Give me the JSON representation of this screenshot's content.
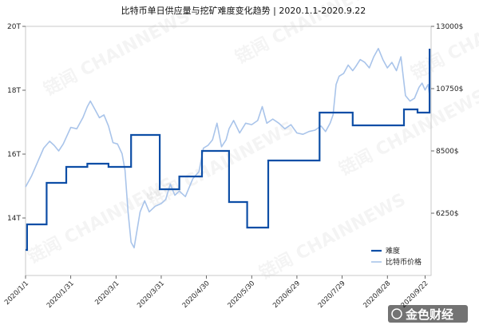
{
  "chart_data": {
    "type": "line",
    "title": "比特币单日供应量与挖矿难度变化趋势 | 2020.1.1-2020.9.22",
    "x_range": [
      "2020-01-01",
      "2020-09-22"
    ],
    "y_left": {
      "ticks": [
        "14T",
        "16T",
        "18T",
        "20T"
      ],
      "values": [
        14,
        16,
        18,
        20
      ],
      "range": [
        12.2,
        20
      ]
    },
    "y_right": {
      "ticks": [
        "6250$",
        "8500$",
        "10750$",
        "13000$"
      ],
      "values": [
        6250,
        8500,
        10750,
        13000
      ],
      "range": [
        4000,
        13000
      ]
    },
    "x_ticks": [
      "2020/1/1",
      "2020/1/31",
      "2020/3/1",
      "2020/3/31",
      "2020/4/30",
      "2020/5/30",
      "2020/6/29",
      "2020/7/29",
      "2020/8/28",
      "2020/9/22"
    ],
    "x_tick_days": [
      0,
      30,
      60,
      90,
      120,
      150,
      180,
      210,
      240,
      265
    ],
    "legend": {
      "position": "bottom-right",
      "items": [
        "难度",
        "比特币价格"
      ]
    },
    "watermark": "链闻 CHAINNEWS",
    "logo_text": "金色财经",
    "series": [
      {
        "name": "难度",
        "axis": "left",
        "color": "#0d4ea6",
        "step": true,
        "points": [
          [
            0,
            13.0
          ],
          [
            1,
            13.8
          ],
          [
            14,
            15.1
          ],
          [
            27,
            15.6
          ],
          [
            41,
            15.7
          ],
          [
            55,
            15.6
          ],
          [
            70,
            16.6
          ],
          [
            89,
            14.9
          ],
          [
            102,
            15.3
          ],
          [
            117,
            16.1
          ],
          [
            135,
            14.5
          ],
          [
            147,
            13.7
          ],
          [
            161,
            15.8
          ],
          [
            195,
            17.3
          ],
          [
            217,
            16.9
          ],
          [
            238,
            16.9
          ],
          [
            251,
            17.4
          ],
          [
            260,
            17.3
          ],
          [
            268,
            19.3
          ]
        ]
      },
      {
        "name": "比特币价格",
        "axis": "right",
        "color": "#a9c4ea",
        "step": false,
        "points": [
          [
            0,
            7200
          ],
          [
            4,
            7600
          ],
          [
            8,
            8100
          ],
          [
            12,
            8600
          ],
          [
            16,
            8850
          ],
          [
            19,
            8700
          ],
          [
            22,
            8500
          ],
          [
            25,
            8750
          ],
          [
            30,
            9350
          ],
          [
            34,
            9300
          ],
          [
            38,
            9700
          ],
          [
            41,
            10100
          ],
          [
            43,
            10300
          ],
          [
            46,
            10000
          ],
          [
            49,
            9700
          ],
          [
            52,
            9800
          ],
          [
            55,
            9400
          ],
          [
            58,
            8800
          ],
          [
            61,
            8750
          ],
          [
            64,
            8400
          ],
          [
            66,
            7800
          ],
          [
            68,
            6300
          ],
          [
            70,
            5200
          ],
          [
            72,
            5000
          ],
          [
            76,
            6300
          ],
          [
            79,
            6700
          ],
          [
            82,
            6300
          ],
          [
            86,
            6500
          ],
          [
            90,
            6600
          ],
          [
            93,
            6750
          ],
          [
            96,
            7300
          ],
          [
            99,
            6900
          ],
          [
            102,
            7050
          ],
          [
            106,
            6850
          ],
          [
            111,
            7500
          ],
          [
            115,
            7750
          ],
          [
            118,
            8600
          ],
          [
            121,
            8700
          ],
          [
            124,
            8900
          ],
          [
            127,
            9500
          ],
          [
            130,
            8650
          ],
          [
            133,
            8900
          ],
          [
            135,
            9300
          ],
          [
            138,
            9600
          ],
          [
            142,
            9150
          ],
          [
            146,
            9500
          ],
          [
            150,
            9450
          ],
          [
            154,
            9600
          ],
          [
            157,
            10100
          ],
          [
            160,
            9500
          ],
          [
            164,
            9650
          ],
          [
            168,
            9500
          ],
          [
            172,
            9300
          ],
          [
            176,
            9450
          ],
          [
            180,
            9150
          ],
          [
            184,
            9100
          ],
          [
            188,
            9200
          ],
          [
            192,
            9250
          ],
          [
            196,
            9400
          ],
          [
            199,
            9200
          ],
          [
            202,
            9500
          ],
          [
            204,
            9800
          ],
          [
            206,
            10900
          ],
          [
            208,
            11200
          ],
          [
            211,
            11300
          ],
          [
            214,
            11600
          ],
          [
            217,
            11400
          ],
          [
            219,
            11550
          ],
          [
            222,
            11800
          ],
          [
            225,
            11700
          ],
          [
            228,
            11500
          ],
          [
            231,
            11900
          ],
          [
            234,
            12200
          ],
          [
            237,
            11800
          ],
          [
            240,
            11500
          ],
          [
            243,
            11700
          ],
          [
            246,
            11400
          ],
          [
            249,
            11900
          ],
          [
            252,
            10500
          ],
          [
            255,
            10300
          ],
          [
            258,
            10400
          ],
          [
            261,
            10800
          ],
          [
            263,
            10950
          ],
          [
            265,
            10700
          ],
          [
            267,
            10900
          ],
          [
            268,
            10500
          ]
        ]
      }
    ]
  }
}
